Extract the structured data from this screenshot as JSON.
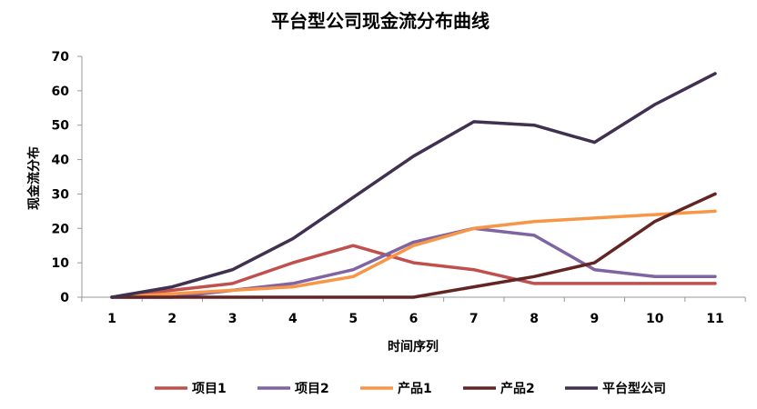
{
  "chart_data": {
    "type": "line",
    "title": "平台型公司现金流分布曲线",
    "xlabel": "时间序列",
    "ylabel": "现金流分布",
    "categories": [
      "1",
      "2",
      "3",
      "4",
      "5",
      "6",
      "7",
      "8",
      "9",
      "10",
      "11"
    ],
    "ylim": [
      0,
      70
    ],
    "yticks": [
      "0",
      "10",
      "20",
      "30",
      "40",
      "50",
      "60",
      "70"
    ],
    "grid": false,
    "legend_position": "bottom",
    "series": [
      {
        "name": "项目1",
        "color": "#C0504D",
        "values": [
          0,
          2,
          4,
          10,
          15,
          10,
          8,
          4,
          4,
          4,
          4
        ]
      },
      {
        "name": "项目2",
        "color": "#8064A2",
        "values": [
          0,
          0,
          2,
          4,
          8,
          16,
          20,
          18,
          8,
          6,
          6
        ]
      },
      {
        "name": "产品1",
        "color": "#F79646",
        "values": [
          0,
          1,
          2,
          3,
          6,
          15,
          20,
          22,
          23,
          24,
          25
        ]
      },
      {
        "name": "产品2",
        "color": "#632523",
        "values": [
          0,
          0,
          0,
          0,
          0,
          0,
          3,
          6,
          10,
          22,
          30
        ]
      },
      {
        "name": "平台型公司",
        "color": "#403151",
        "values": [
          0,
          3,
          8,
          17,
          29,
          41,
          51,
          50,
          45,
          56,
          65
        ]
      }
    ]
  }
}
